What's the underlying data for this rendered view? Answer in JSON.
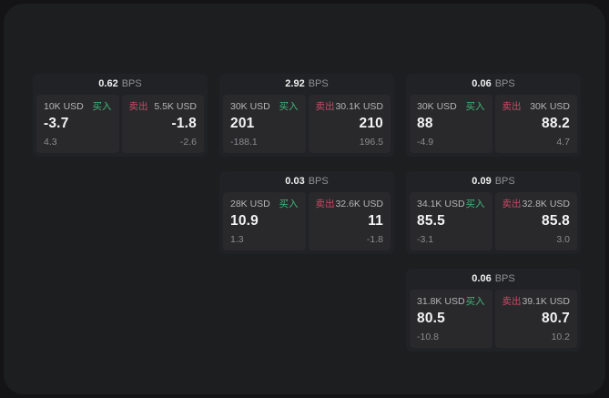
{
  "labels": {
    "bps": "BPS",
    "buy": "买入",
    "sell": "卖出"
  },
  "colors": {
    "buy_green": "#40b779",
    "sell_red": "#c74963",
    "page_bg": "#141416",
    "container_bg": "#1d1e20",
    "card_bg": "#212225",
    "panel_bg": "#29292c"
  },
  "cards": [
    {
      "bps": "0.62",
      "buy": {
        "size": "10K USD",
        "value": "-3.7",
        "delta": "4.3"
      },
      "sell": {
        "size": "5.5K USD",
        "value": "-1.8",
        "delta": "-2.6"
      }
    },
    {
      "bps": "2.92",
      "buy": {
        "size": "30K USD",
        "value": "201",
        "delta": "-188.1"
      },
      "sell": {
        "size": "30.1K USD",
        "value": "210",
        "delta": "196.5"
      }
    },
    {
      "bps": "0.06",
      "buy": {
        "size": "30K USD",
        "value": "88",
        "delta": "-4.9"
      },
      "sell": {
        "size": "30K USD",
        "value": "88.2",
        "delta": "4.7"
      }
    },
    {
      "bps": "0.03",
      "buy": {
        "size": "28K USD",
        "value": "10.9",
        "delta": "1.3"
      },
      "sell": {
        "size": "32.6K USD",
        "value": "11",
        "delta": "-1.8"
      }
    },
    {
      "bps": "0.09",
      "buy": {
        "size": "34.1K USD",
        "value": "85.5",
        "delta": "-3.1"
      },
      "sell": {
        "size": "32.8K USD",
        "value": "85.8",
        "delta": "3.0"
      }
    },
    {
      "bps": "0.06",
      "buy": {
        "size": "31.8K USD",
        "value": "80.5",
        "delta": "-10.8"
      },
      "sell": {
        "size": "39.1K USD",
        "value": "80.7",
        "delta": "10.2"
      }
    }
  ]
}
